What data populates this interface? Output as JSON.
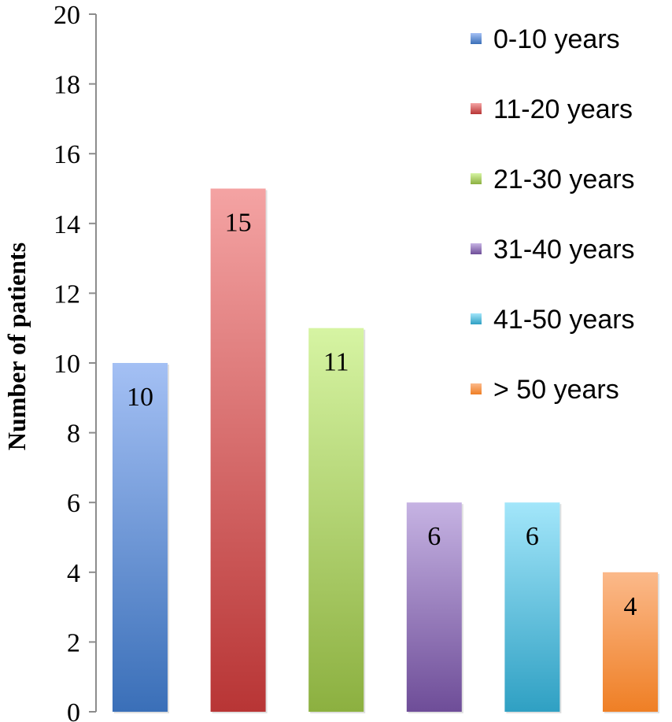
{
  "chart_data": {
    "type": "bar",
    "title": "",
    "xlabel": "",
    "ylabel": "Number of patients",
    "ylim": [
      0,
      20
    ],
    "yticks": [
      0,
      2,
      4,
      6,
      8,
      10,
      12,
      14,
      16,
      18,
      20
    ],
    "grid": false,
    "legend_position": "top-right",
    "categories": [
      "0-10 years",
      "11-20 years",
      "21-30 years",
      "31-40 years",
      "41-50 years",
      "> 50 years"
    ],
    "values": [
      10,
      15,
      11,
      6,
      6,
      4
    ],
    "colors": [
      [
        "#a4c0f4",
        "#3a6fb8"
      ],
      [
        "#f4a3a3",
        "#b83535"
      ],
      [
        "#d6f4a3",
        "#8cb040"
      ],
      [
        "#c6b3e3",
        "#6e4d98"
      ],
      [
        "#a3e6fa",
        "#2fa0c3"
      ],
      [
        "#fbb98a",
        "#ef7f25"
      ]
    ]
  }
}
